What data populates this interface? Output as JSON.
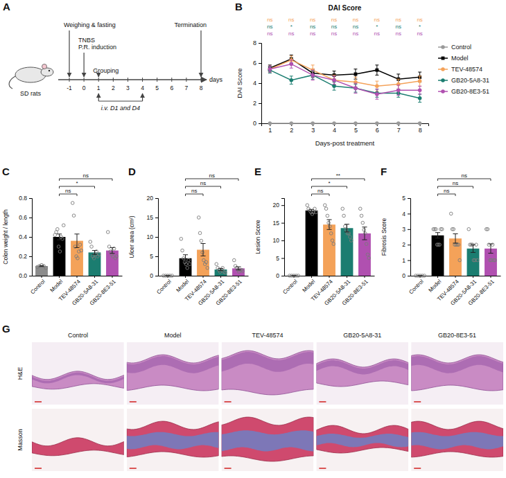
{
  "chart_data": [
    {
      "type": "line",
      "panel_label": "B",
      "title": "DAI Score",
      "x_label": "Days-post treatment",
      "y_label": "DAI Score",
      "x": [
        1,
        2,
        3,
        4,
        5,
        6,
        7,
        8
      ],
      "xlim": [
        0.6,
        8.4
      ],
      "xticks": [
        1,
        2,
        3,
        4,
        5,
        6,
        7,
        8
      ],
      "ylim": [
        0,
        8
      ],
      "yticks": [
        0,
        2,
        4,
        6,
        8
      ],
      "legend": "right",
      "series": [
        {
          "name": "Control",
          "color": "#999999",
          "marker": "circle",
          "values": [
            0,
            0,
            0,
            0,
            0,
            0,
            0,
            0
          ]
        },
        {
          "name": "Model",
          "color": "#000000",
          "marker": "square",
          "values": [
            5.5,
            6.4,
            5.0,
            4.8,
            4.9,
            5.3,
            4.4,
            4.6
          ],
          "errors": [
            0.3,
            0.4,
            0.4,
            0.4,
            0.5,
            0.5,
            0.5,
            0.5
          ]
        },
        {
          "name": "TEV-48574",
          "color": "#f4a259",
          "marker": "circle",
          "values": [
            5.4,
            6.3,
            5.3,
            4.3,
            4.1,
            3.7,
            3.9,
            4.2
          ],
          "errors": [
            0.3,
            0.4,
            0.5,
            0.5,
            0.5,
            0.5,
            0.5,
            0.5
          ],
          "significance": [
            "ns",
            "ns",
            "ns",
            "ns",
            "ns",
            "ns",
            "ns",
            "ns"
          ]
        },
        {
          "name": "GB20-5A8-31",
          "color": "#1b7d70",
          "marker": "circle",
          "values": [
            5.3,
            4.3,
            4.8,
            3.7,
            3.5,
            3.0,
            3.0,
            2.5
          ],
          "errors": [
            0.3,
            0.4,
            0.4,
            0.4,
            0.4,
            0.4,
            0.4,
            0.4
          ],
          "significance": [
            "ns",
            "*",
            "ns",
            "ns",
            "ns",
            "*",
            "ns",
            "*"
          ]
        },
        {
          "name": "GB20-8E3-51",
          "color": "#b050b0",
          "marker": "circle",
          "values": [
            5.4,
            5.9,
            4.8,
            4.3,
            3.5,
            2.9,
            3.3,
            3.3
          ],
          "errors": [
            0.3,
            0.4,
            0.5,
            0.4,
            0.5,
            0.5,
            0.5,
            0.4
          ],
          "significance": [
            "ns",
            "ns",
            "ns",
            "ns",
            "ns",
            "ns",
            "ns",
            "ns"
          ]
        }
      ]
    },
    {
      "type": "bar",
      "panel_label": "C",
      "y_label": "Colon weight / length",
      "categories": [
        "Control",
        "Model",
        "TEV-48574",
        "GB20-5A8-31",
        "GB20-8E3-51"
      ],
      "values": [
        0.1,
        0.4,
        0.36,
        0.24,
        0.26
      ],
      "errors": [
        0.005,
        0.03,
        0.07,
        0.02,
        0.03
      ],
      "points": [
        [
          0.09,
          0.1,
          0.11,
          0.1,
          0.08
        ],
        [
          0.42,
          0.45,
          0.48,
          0.3,
          0.25,
          0.4,
          0.38,
          0.52
        ],
        [
          0.75,
          0.62,
          0.3,
          0.2,
          0.18,
          0.25,
          0.32,
          0.26
        ],
        [
          0.35,
          0.3,
          0.2,
          0.18,
          0.22,
          0.25,
          0.2,
          0.22
        ],
        [
          0.45,
          0.3,
          0.25,
          0.22,
          0.2,
          0.28,
          0.18,
          0.2
        ]
      ],
      "colors": [
        "#8c8c8c",
        "#000000",
        "#f4a259",
        "#1b7d70",
        "#b050b0"
      ],
      "ylim": [
        0,
        0.8
      ],
      "yticks": [
        {
          "value": 0,
          "label": "0.0"
        },
        0.2,
        0.4,
        0.6,
        0.8
      ],
      "comparisons": [
        {
          "pair": [
            1,
            2
          ],
          "label": "ns"
        },
        {
          "pair": [
            1,
            3
          ],
          "label": "*"
        },
        {
          "pair": [
            1,
            4
          ],
          "label": "ns"
        }
      ]
    },
    {
      "type": "bar",
      "panel_label": "D",
      "y_label": "Ulcer area (cm²)",
      "categories": [
        "Control",
        "Model",
        "TEV-48574",
        "GB20-5A8-31",
        "GB20-8E3-51"
      ],
      "values": [
        0,
        4.5,
        6.7,
        1.6,
        1.9
      ],
      "errors": [
        0,
        0.9,
        1.6,
        0.3,
        0.4
      ],
      "points": [
        [
          0,
          0,
          0,
          0,
          0
        ],
        [
          9.5,
          6.5,
          4.5,
          3.5,
          3,
          2,
          4,
          3
        ],
        [
          15,
          11,
          9,
          6,
          4,
          3,
          3.5,
          2
        ],
        [
          3,
          2,
          1.5,
          1,
          1.5,
          2,
          1,
          0.8
        ],
        [
          4,
          2.5,
          2,
          1.5,
          1,
          1.5,
          1.5,
          1.2
        ]
      ],
      "colors": [
        "#8c8c8c",
        "#000000",
        "#f4a259",
        "#1b7d70",
        "#b050b0"
      ],
      "ylim": [
        0,
        20
      ],
      "yticks": [
        0,
        5,
        10,
        15,
        20
      ],
      "comparisons": [
        {
          "pair": [
            1,
            2
          ],
          "label": "ns"
        },
        {
          "pair": [
            1,
            3
          ],
          "label": "ns"
        },
        {
          "pair": [
            1,
            4
          ],
          "label": "ns"
        }
      ]
    },
    {
      "type": "bar",
      "panel_label": "E",
      "y_label": "Lesion Score",
      "categories": [
        "Control",
        "Model",
        "TEV-48574",
        "GB20-5A8-31",
        "GB20-8E3-51"
      ],
      "values": [
        0,
        18.5,
        14.5,
        13.5,
        12
      ],
      "errors": [
        0,
        0.3,
        1.4,
        1.1,
        1.8
      ],
      "points": [
        [
          0,
          0,
          0,
          0,
          0
        ],
        [
          20,
          19,
          18.5,
          18,
          17.5,
          18,
          19,
          18
        ],
        [
          20,
          19,
          17,
          15,
          14,
          12,
          10,
          9
        ],
        [
          19,
          17,
          14,
          13,
          12,
          12,
          11,
          10
        ],
        [
          19,
          17,
          15,
          13,
          12,
          9,
          6,
          5
        ]
      ],
      "colors": [
        "#8c8c8c",
        "#000000",
        "#f4a259",
        "#1b7d70",
        "#b050b0"
      ],
      "ylim": [
        0,
        22
      ],
      "yticks": [
        0,
        5,
        10,
        15,
        20
      ],
      "comparisons": [
        {
          "pair": [
            1,
            2
          ],
          "label": "ns"
        },
        {
          "pair": [
            1,
            3
          ],
          "label": "*"
        },
        {
          "pair": [
            1,
            4
          ],
          "label": "**"
        }
      ]
    },
    {
      "type": "bar",
      "panel_label": "F",
      "y_label": "Fibrosis Score",
      "categories": [
        "Control",
        "Model",
        "TEV-48574",
        "GB20-5A8-31",
        "GB20-8E3-51"
      ],
      "values": [
        0,
        2.6,
        2.4,
        1.75,
        1.75
      ],
      "errors": [
        0,
        0.18,
        0.3,
        0.25,
        0.3
      ],
      "points": [
        [
          0,
          0,
          0,
          0,
          0
        ],
        [
          3,
          3,
          3,
          2,
          2,
          2,
          3,
          3
        ],
        [
          4,
          3,
          3,
          2,
          2,
          2,
          2,
          1
        ],
        [
          3,
          2,
          2,
          2,
          1,
          1,
          2,
          1
        ],
        [
          3,
          3,
          2,
          1,
          1,
          2,
          1,
          1
        ]
      ],
      "colors": [
        "#8c8c8c",
        "#000000",
        "#f4a259",
        "#1b7d70",
        "#b050b0"
      ],
      "ylim": [
        0,
        5
      ],
      "yticks": [
        0,
        1,
        2,
        3,
        4,
        5
      ],
      "comparisons": [
        {
          "pair": [
            1,
            2
          ],
          "label": "ns"
        },
        {
          "pair": [
            1,
            3
          ],
          "label": "ns"
        },
        {
          "pair": [
            1,
            4
          ],
          "label": "ns"
        }
      ]
    }
  ],
  "timeline": {
    "panel_label": "A",
    "animal": "SD rats",
    "days": [
      -1,
      0,
      1,
      2,
      3,
      4,
      5,
      6,
      7,
      8
    ],
    "unit": "days",
    "events": [
      {
        "day": -1,
        "lines": [
          "Weighing & fasting"
        ]
      },
      {
        "day": 0,
        "lines": [
          "TNBS",
          "P.R. induction"
        ]
      },
      {
        "day": 1,
        "lines": [
          "Grouping"
        ]
      },
      {
        "day": 8,
        "lines": [
          "Termination"
        ]
      }
    ],
    "dosing": {
      "days": [
        1,
        4
      ],
      "label": "i.v. D1 and D4"
    }
  },
  "histology": {
    "panel_label": "G",
    "columns": [
      "Control",
      "Model",
      "TEV-48574",
      "GB20-5A8-31",
      "GB20-8E3-51"
    ],
    "rows": [
      "H&E",
      "Masson"
    ]
  }
}
